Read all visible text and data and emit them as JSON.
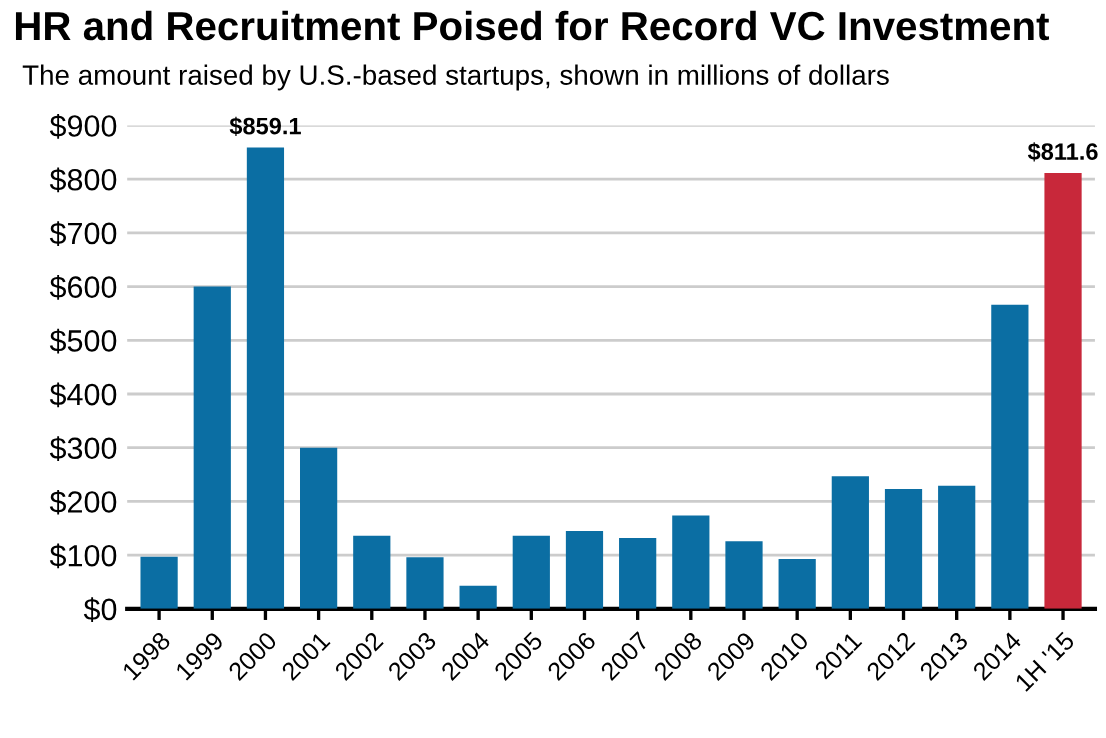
{
  "chart_data": {
    "type": "bar",
    "title": "HR and Recruitment Poised for Record VC Investment",
    "subtitle": "The amount raised by U.S.-based startups, shown in millions of dollars",
    "categories": [
      "1998",
      "1999",
      "2000",
      "2001",
      "2002",
      "2003",
      "2004",
      "2005",
      "2006",
      "2007",
      "2008",
      "2009",
      "2010",
      "2011",
      "2012",
      "2013",
      "2014",
      "1H '15"
    ],
    "values": [
      97,
      600,
      859.1,
      300,
      136,
      96,
      43,
      136,
      145,
      132,
      174,
      126,
      93,
      247,
      223,
      229,
      566,
      811.6
    ],
    "colors": [
      "#0b6ea3",
      "#0b6ea3",
      "#0b6ea3",
      "#0b6ea3",
      "#0b6ea3",
      "#0b6ea3",
      "#0b6ea3",
      "#0b6ea3",
      "#0b6ea3",
      "#0b6ea3",
      "#0b6ea3",
      "#0b6ea3",
      "#0b6ea3",
      "#0b6ea3",
      "#0b6ea3",
      "#0b6ea3",
      "#0b6ea3",
      "#c8283a"
    ],
    "value_labels": [
      null,
      null,
      "$859.1",
      null,
      null,
      null,
      null,
      null,
      null,
      null,
      null,
      null,
      null,
      null,
      null,
      null,
      null,
      "$811.6"
    ],
    "ylim": [
      0,
      900
    ],
    "yticks": [
      {
        "value": 0,
        "label": "$0"
      },
      {
        "value": 100,
        "label": "$100"
      },
      {
        "value": 200,
        "label": "$200"
      },
      {
        "value": 300,
        "label": "$300"
      },
      {
        "value": 400,
        "label": "$400"
      },
      {
        "value": 500,
        "label": "$500"
      },
      {
        "value": 600,
        "label": "$600"
      },
      {
        "value": 700,
        "label": "$700"
      },
      {
        "value": 800,
        "label": "$800"
      },
      {
        "value": 900,
        "label": "$900"
      }
    ],
    "grid": "y"
  }
}
